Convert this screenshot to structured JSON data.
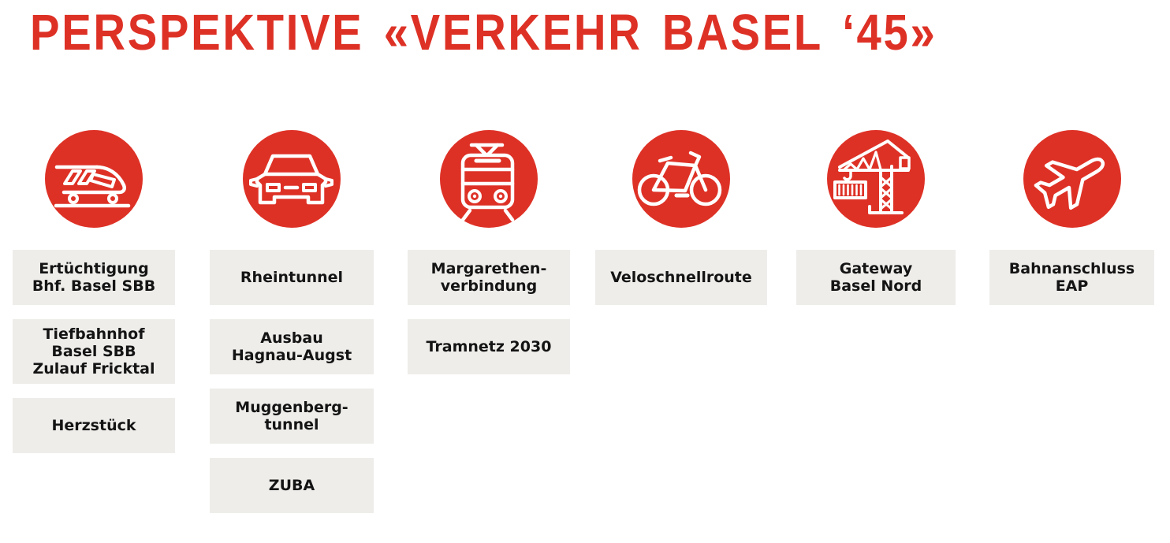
{
  "title": "PERSPEKTIVE «VERKEHR BASEL ‘45»",
  "colors": {
    "accent_red": "#DE3126",
    "box_bg": "#EEEDEA",
    "label_text": "#141414",
    "page_bg": "#FFFFFF",
    "icon_stroke": "#FFFFFF"
  },
  "columns": [
    {
      "id": "rail",
      "icon": "train-icon",
      "labels": [
        [
          "Ertüchtigung",
          "Bhf. Basel SBB"
        ],
        [
          "Tiefbahnhof",
          "Basel SBB",
          "Zulauf Fricktal"
        ],
        [
          "Herzstück"
        ]
      ]
    },
    {
      "id": "road",
      "icon": "car-icon",
      "labels": [
        [
          "Rheintunnel"
        ],
        [
          "Ausbau",
          "Hagnau-Augst"
        ],
        [
          "Muggenberg-",
          "tunnel"
        ],
        [
          "ZUBA"
        ]
      ]
    },
    {
      "id": "tram",
      "icon": "tram-icon",
      "labels": [
        [
          "Margarethen-",
          "verbindung"
        ],
        [
          "Tramnetz 2030"
        ]
      ]
    },
    {
      "id": "velo",
      "icon": "bicycle-icon",
      "labels": [
        [
          "Veloschnellroute"
        ]
      ]
    },
    {
      "id": "logistics",
      "icon": "crane-icon",
      "labels": [
        [
          "Gateway",
          "Basel Nord"
        ]
      ]
    },
    {
      "id": "air",
      "icon": "airplane-icon",
      "labels": [
        [
          "Bahnanschluss",
          "EAP"
        ]
      ]
    }
  ]
}
